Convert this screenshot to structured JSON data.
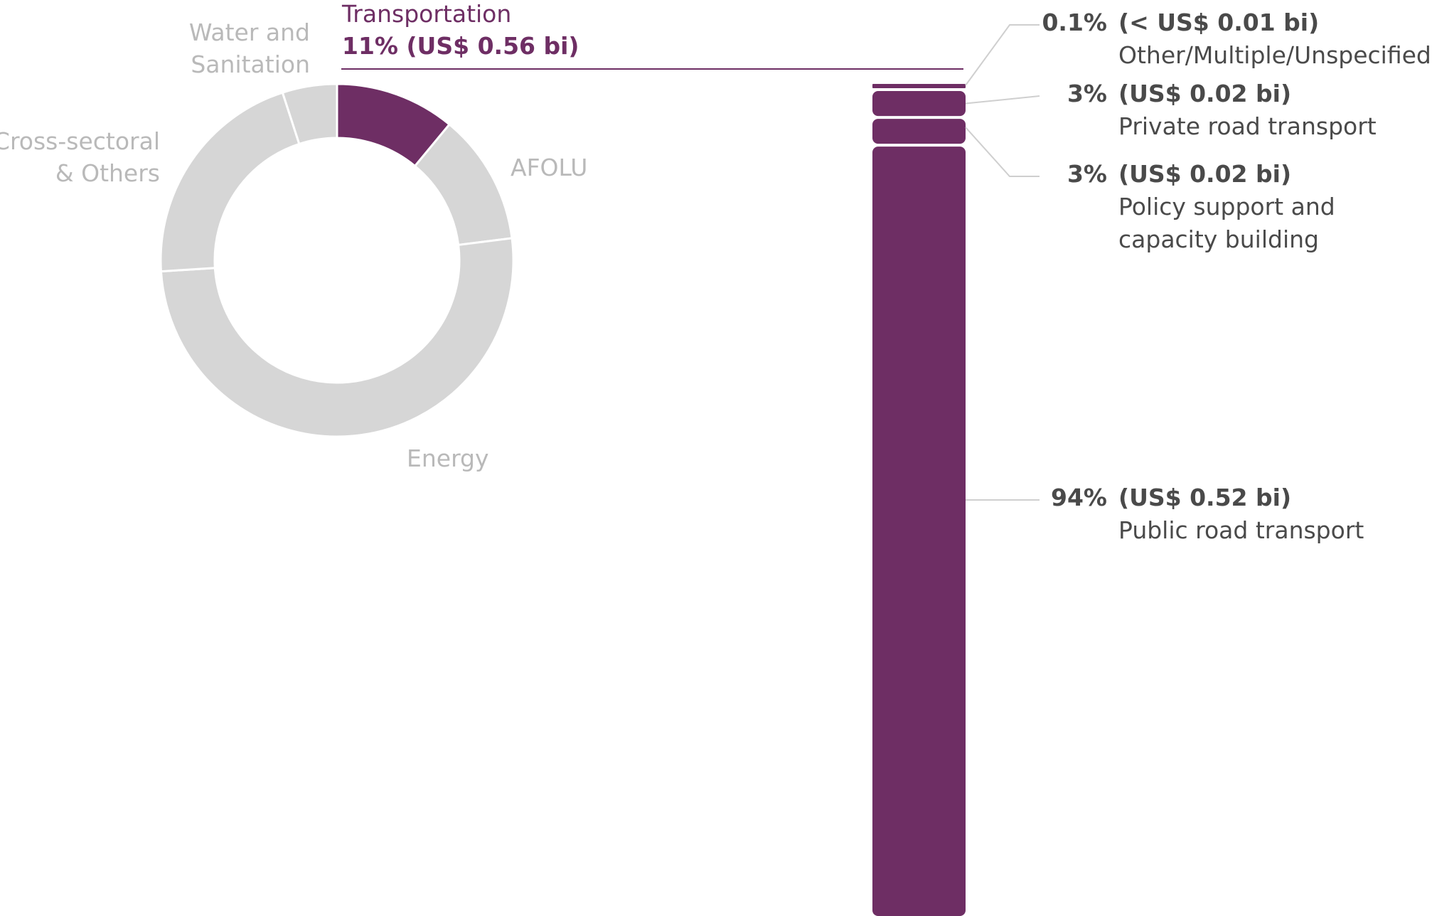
{
  "chart_data": [
    {
      "type": "pie",
      "variant": "donut",
      "title": "",
      "slices": [
        {
          "label": "Transportation",
          "value": 11,
          "value_label": "11% (US$ 0.56 bi)",
          "color": "#6e2e64",
          "highlighted": true
        },
        {
          "label": "AFOLU",
          "value": 12,
          "color": "#d6d6d6"
        },
        {
          "label": "Energy",
          "value": 51,
          "color": "#d6d6d6"
        },
        {
          "label": "Cross-sectoral & Others",
          "label_lines": [
            "Cross-sectoral",
            "& Others"
          ],
          "value": 21,
          "color": "#d6d6d6"
        },
        {
          "label": "Water and Sanitation",
          "label_lines": [
            "Water and",
            "Sanitation"
          ],
          "value": 5,
          "color": "#d6d6d6"
        }
      ]
    },
    {
      "type": "bar",
      "variant": "stacked-100",
      "title": "",
      "total_label": "Transportation",
      "segments": [
        {
          "label": "Other/Multiple/Unspecified",
          "label_lines": [
            "Other/Multiple/Unspecified"
          ],
          "value": 0.1,
          "percent_label": "0.1%",
          "amount_label": "(< US$ 0.01 bi)"
        },
        {
          "label": "Private road transport",
          "label_lines": [
            "Private road transport"
          ],
          "value": 3,
          "percent_label": "3%",
          "amount_label": "(US$ 0.02 bi)"
        },
        {
          "label": "Policy support and capacity building",
          "label_lines": [
            "Policy support and",
            "capacity building"
          ],
          "value": 3,
          "percent_label": "3%",
          "amount_label": "(US$ 0.02 bi)"
        },
        {
          "label": "Public road transport",
          "label_lines": [
            "Public road transport"
          ],
          "value": 94,
          "percent_label": "94%",
          "amount_label": "(US$ 0.52 bi)"
        }
      ],
      "color": "#6e2e64"
    }
  ]
}
